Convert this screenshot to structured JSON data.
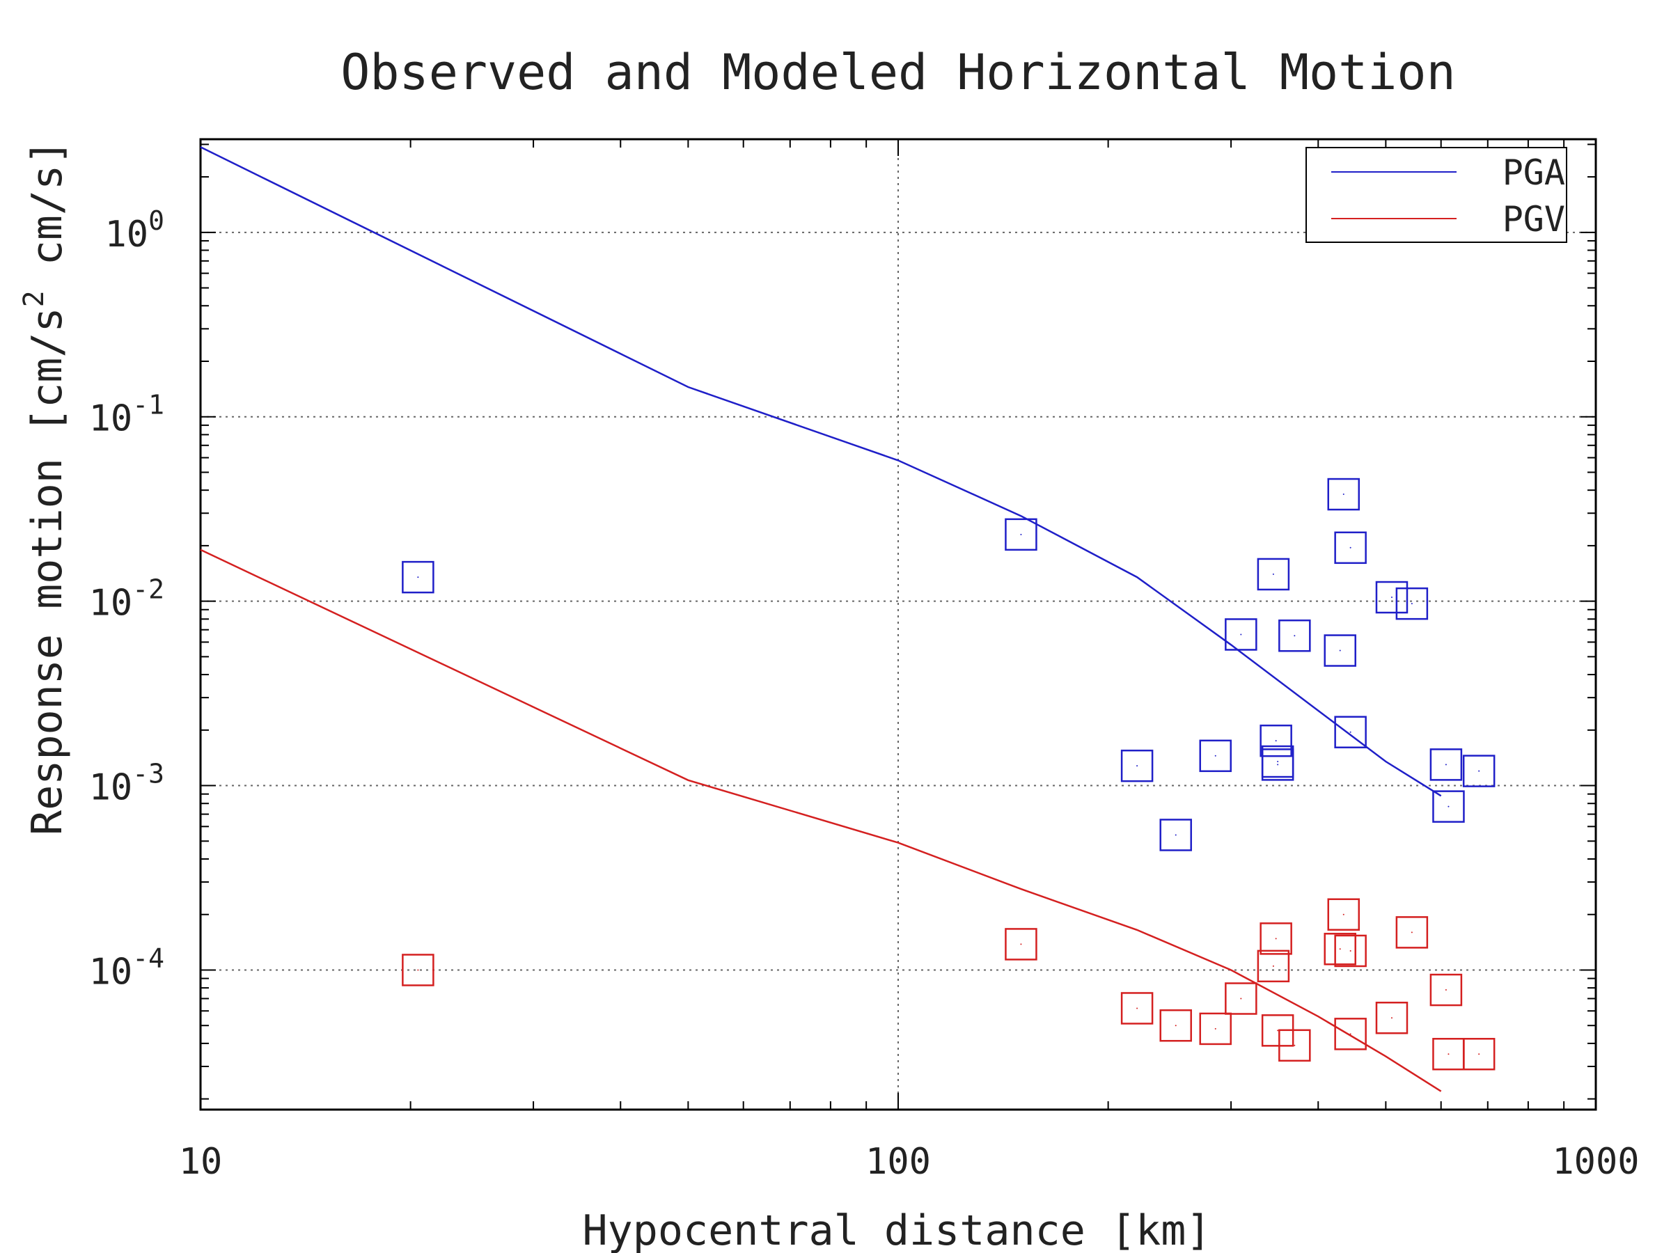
{
  "chart_data": {
    "type": "scatter",
    "title": "Observed and Modeled Horizontal Motion",
    "xlabel": "Hypocentral distance [km]",
    "ylabel": "Response motion  [cm/s",
    "ylabel_superscript": "2",
    "ylabel_tail": "  cm/s]",
    "x_scale": "log",
    "y_scale": "log",
    "xlim": [
      10,
      1000
    ],
    "ylim": [
      1.75e-05,
      3.2
    ],
    "x_ticks": [
      {
        "value": 10,
        "label": "10"
      },
      {
        "value": 100,
        "label": "100"
      },
      {
        "value": 1000,
        "label": "1000"
      }
    ],
    "y_ticks": [
      {
        "value": 1,
        "base": "10",
        "exp": "0"
      },
      {
        "value": 0.1,
        "base": "10",
        "exp": "-1"
      },
      {
        "value": 0.01,
        "base": "10",
        "exp": "-2"
      },
      {
        "value": 0.001,
        "base": "10",
        "exp": "-3"
      },
      {
        "value": 0.0001,
        "base": "10",
        "exp": "-4"
      }
    ],
    "grid": true,
    "legend_position": "top-right",
    "series": [
      {
        "name": "PGA",
        "kind": "model",
        "color": "#1f1fc8",
        "x": [
          10,
          50,
          100,
          150,
          220,
          300,
          400,
          500,
          600
        ],
        "y": [
          2.9,
          0.145,
          0.058,
          0.029,
          0.0135,
          0.0058,
          0.00255,
          0.00135,
          0.00088
        ]
      },
      {
        "name": "PGV",
        "kind": "model",
        "color": "#d42020",
        "x": [
          10,
          50,
          100,
          150,
          220,
          300,
          400,
          500,
          600
        ],
        "y": [
          0.019,
          0.00107,
          0.00049,
          0.000275,
          0.000165,
          0.0001,
          5.6e-05,
          3.4e-05,
          2.2e-05
        ]
      },
      {
        "name": "PGA observed",
        "kind": "observed",
        "color": "#1f1fc8",
        "x": [
          20.5,
          150,
          220,
          250,
          285,
          310,
          345,
          348,
          350,
          350,
          370,
          430,
          435,
          445,
          445,
          510,
          545,
          610,
          615,
          680
        ],
        "y": [
          0.0135,
          0.023,
          0.00128,
          0.00054,
          0.00145,
          0.0066,
          0.014,
          0.00175,
          0.0013,
          0.00135,
          0.0065,
          0.0054,
          0.038,
          0.0195,
          0.00195,
          0.0105,
          0.0097,
          0.0013,
          0.00077,
          0.0012
        ]
      },
      {
        "name": "PGV observed",
        "kind": "observed",
        "color": "#d42020",
        "x": [
          20.5,
          150,
          220,
          250,
          285,
          310,
          345,
          348,
          350,
          370,
          430,
          435,
          445,
          445,
          510,
          545,
          610,
          615,
          680
        ],
        "y": [
          0.0001,
          0.000138,
          6.2e-05,
          5e-05,
          4.8e-05,
          7e-05,
          0.000105,
          0.000148,
          4.7e-05,
          3.9e-05,
          0.00013,
          0.0002,
          0.000127,
          4.5e-05,
          5.5e-05,
          0.00016,
          7.8e-05,
          3.5e-05,
          3.5e-05
        ]
      }
    ]
  }
}
